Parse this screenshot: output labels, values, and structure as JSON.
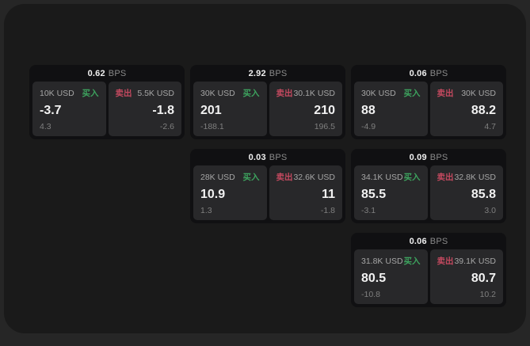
{
  "labels": {
    "bps_unit": "BPS",
    "buy": "买入",
    "sell": "卖出"
  },
  "colors": {
    "buy_green": "#3da35e",
    "sell_red": "#c3495f",
    "panel_bg": "#28282a",
    "card_bg": "#101012",
    "app_bg": "#1a1a1a"
  },
  "cards": [
    {
      "bps": "0.62",
      "buy": {
        "amount": "10K USD",
        "price": "-3.7",
        "delta": "4.3"
      },
      "sell": {
        "amount": "5.5K USD",
        "price": "-1.8",
        "delta": "-2.6"
      }
    },
    {
      "bps": "2.92",
      "buy": {
        "amount": "30K USD",
        "price": "201",
        "delta": "-188.1"
      },
      "sell": {
        "amount": "30.1K USD",
        "price": "210",
        "delta": "196.5"
      }
    },
    {
      "bps": "0.06",
      "buy": {
        "amount": "30K USD",
        "price": "88",
        "delta": "-4.9"
      },
      "sell": {
        "amount": "30K USD",
        "price": "88.2",
        "delta": "4.7"
      }
    },
    {
      "bps": "0.03",
      "buy": {
        "amount": "28K USD",
        "price": "10.9",
        "delta": "1.3"
      },
      "sell": {
        "amount": "32.6K USD",
        "price": "11",
        "delta": "-1.8"
      }
    },
    {
      "bps": "0.09",
      "buy": {
        "amount": "34.1K USD",
        "price": "85.5",
        "delta": "-3.1"
      },
      "sell": {
        "amount": "32.8K USD",
        "price": "85.8",
        "delta": "3.0"
      }
    },
    {
      "bps": "0.06",
      "buy": {
        "amount": "31.8K USD",
        "price": "80.5",
        "delta": "-10.8"
      },
      "sell": {
        "amount": "39.1K USD",
        "price": "80.7",
        "delta": "10.2"
      }
    }
  ]
}
